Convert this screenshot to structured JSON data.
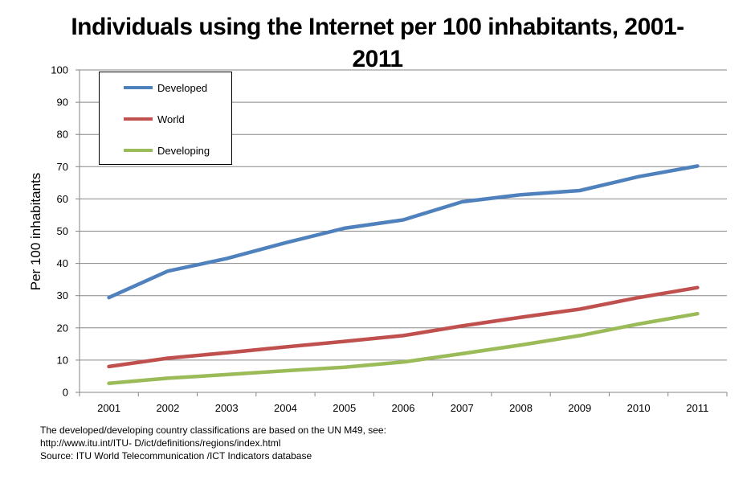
{
  "chart_data": {
    "type": "line",
    "title": "Individuals using the Internet per 100 inhabitants, 2001-2011",
    "xlabel": "",
    "ylabel": "Per 100 inhabitants",
    "categories": [
      "2001",
      "2002",
      "2003",
      "2004",
      "2005",
      "2006",
      "2007",
      "2008",
      "2009",
      "2010",
      "2011"
    ],
    "ylim": [
      0,
      100
    ],
    "yticks": [
      "0",
      "10",
      "20",
      "30",
      "40",
      "50",
      "60",
      "70",
      "80",
      "90",
      "100"
    ],
    "grid": true,
    "legend_position": "top-left",
    "series": [
      {
        "name": "Developed",
        "color": "#4f81bd",
        "values": [
          29.4,
          37.6,
          41.5,
          46.4,
          50.9,
          53.5,
          59.1,
          61.3,
          62.6,
          66.9,
          70.2
        ]
      },
      {
        "name": "World",
        "color": "#c0504d",
        "values": [
          8.0,
          10.6,
          12.3,
          14.1,
          15.8,
          17.6,
          20.6,
          23.3,
          25.8,
          29.4,
          32.5
        ]
      },
      {
        "name": "Developing",
        "color": "#9bbb59",
        "values": [
          2.8,
          4.4,
          5.5,
          6.7,
          7.8,
          9.4,
          12.0,
          14.7,
          17.6,
          21.2,
          24.4
        ]
      }
    ]
  },
  "footnotes": {
    "line1": "The developed/developing country classifications are based on the UN M49, see:",
    "line2": "http://www.itu.int/ITU- D/ict/definitions/regions/index.html",
    "line3": "Source:  ITU World Telecommunication /ICT Indicators database"
  }
}
